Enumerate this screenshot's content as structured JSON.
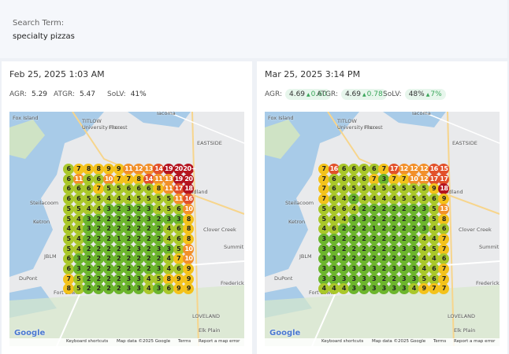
{
  "search": {
    "label": "Search Term:",
    "term": "specialty pizzas"
  },
  "map": {
    "labels": [
      "Fox Island",
      "TITLOW",
      "University Place",
      "Fircrest",
      "Tacoma",
      "EASTSIDE",
      "Midland",
      "Steilacoom",
      "Ketron",
      "Clover Creek",
      "Summit",
      "JBLM",
      "DuPont",
      "Frederick",
      "Fort Lewis",
      "LOVELAND",
      "Elk Plain"
    ],
    "logo": "Google",
    "footer": [
      "Keyboard shortcuts",
      "Map data ©2025 Google",
      "Terms",
      "Report a map error"
    ]
  },
  "panels": [
    {
      "date": "Feb 25, 2025 1:03 AM",
      "metrics": [
        {
          "label": "AGR:",
          "value": "5.29"
        },
        {
          "label": "ATGR:",
          "value": "5.47"
        },
        {
          "label": "SoLV:",
          "value": "41%"
        }
      ],
      "grid": [
        [
          6,
          7,
          8,
          8,
          9,
          9,
          11,
          12,
          13,
          14,
          19,
          20,
          "20+"
        ],
        [
          6,
          11,
          6,
          6,
          10,
          7,
          7,
          8,
          14,
          11,
          13,
          19,
          20
        ],
        [
          6,
          6,
          6,
          7,
          5,
          5,
          6,
          6,
          6,
          8,
          11,
          17,
          18
        ],
        [
          6,
          6,
          5,
          5,
          4,
          4,
          4,
          5,
          5,
          5,
          5,
          11,
          16
        ],
        [
          5,
          5,
          4,
          4,
          3,
          2,
          3,
          2,
          3,
          4,
          5,
          6,
          10
        ],
        [
          5,
          4,
          3,
          2,
          2,
          2,
          2,
          2,
          3,
          2,
          3,
          3,
          8
        ],
        [
          4,
          4,
          3,
          2,
          2,
          2,
          2,
          2,
          2,
          2,
          4,
          6,
          8
        ],
        [
          5,
          4,
          2,
          2,
          2,
          1,
          2,
          2,
          2,
          2,
          4,
          6,
          8
        ],
        [
          5,
          4,
          2,
          2,
          2,
          2,
          2,
          3,
          2,
          3,
          3,
          5,
          10
        ],
        [
          6,
          3,
          2,
          2,
          2,
          2,
          2,
          2,
          2,
          2,
          4,
          7,
          10
        ],
        [
          6,
          3,
          2,
          2,
          2,
          2,
          2,
          2,
          2,
          3,
          4,
          6,
          9
        ],
        [
          7,
          5,
          2,
          2,
          2,
          2,
          3,
          3,
          4,
          5,
          8,
          9,
          9
        ],
        [
          8,
          5,
          2,
          2,
          2,
          2,
          3,
          3,
          4,
          3,
          6,
          9,
          9
        ]
      ]
    },
    {
      "date": "Mar 25, 2025 3:14 PM",
      "metrics": [
        {
          "label": "AGR:",
          "value": "4.69",
          "delta": "0.60"
        },
        {
          "label": "ATGR:",
          "value": "4.69",
          "delta": "0.78"
        },
        {
          "label": "SoLV:",
          "value": "48%",
          "delta": "7%"
        }
      ],
      "grid": [
        [
          7,
          16,
          6,
          6,
          6,
          6,
          7,
          17,
          12,
          12,
          12,
          16,
          15
        ],
        [
          7,
          6,
          6,
          6,
          6,
          7,
          3,
          7,
          7,
          10,
          12,
          17,
          17
        ],
        [
          7,
          6,
          6,
          5,
          5,
          4,
          5,
          5,
          5,
          5,
          5,
          9,
          18
        ],
        [
          7,
          6,
          4,
          2,
          4,
          4,
          4,
          4,
          5,
          5,
          5,
          6,
          9
        ],
        [
          5,
          6,
          6,
          4,
          2,
          2,
          2,
          2,
          2,
          2,
          3,
          5,
          13
        ],
        [
          5,
          4,
          4,
          3,
          3,
          2,
          2,
          2,
          2,
          2,
          3,
          5,
          8
        ],
        [
          4,
          6,
          2,
          2,
          2,
          1,
          2,
          2,
          2,
          2,
          3,
          4,
          6
        ],
        [
          3,
          3,
          2,
          2,
          2,
          2,
          2,
          2,
          2,
          2,
          4,
          4,
          7
        ],
        [
          3,
          3,
          2,
          2,
          2,
          2,
          2,
          2,
          3,
          3,
          4,
          5,
          7
        ],
        [
          3,
          3,
          2,
          2,
          2,
          2,
          2,
          2,
          2,
          2,
          4,
          4,
          6
        ],
        [
          3,
          3,
          3,
          3,
          3,
          3,
          2,
          3,
          3,
          3,
          4,
          6,
          7
        ],
        [
          3,
          3,
          3,
          3,
          3,
          3,
          2,
          2,
          3,
          3,
          5,
          6,
          7
        ],
        [
          4,
          4,
          4,
          3,
          3,
          3,
          3,
          3,
          3,
          4,
          9,
          7,
          7
        ]
      ]
    }
  ]
}
